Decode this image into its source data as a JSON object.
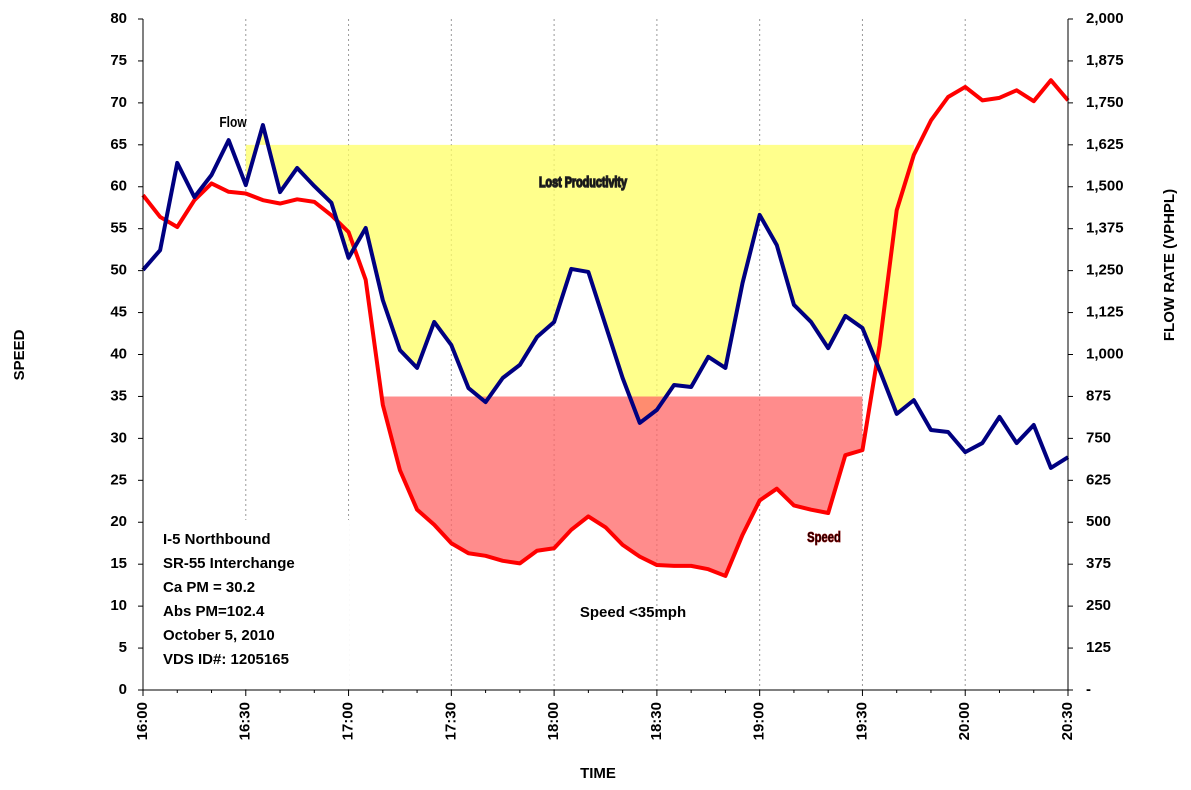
{
  "chart_data": {
    "type": "line",
    "x_label": "TIME",
    "y_label": "SPEED",
    "y2_label": "FLOW RATE (VPHPL)",
    "x": [
      "16:00",
      "16:05",
      "16:10",
      "16:15",
      "16:20",
      "16:25",
      "16:30",
      "16:35",
      "16:40",
      "16:45",
      "16:50",
      "16:55",
      "17:00",
      "17:05",
      "17:10",
      "17:15",
      "17:20",
      "17:25",
      "17:30",
      "17:35",
      "17:40",
      "17:45",
      "17:50",
      "17:55",
      "18:00",
      "18:05",
      "18:10",
      "18:15",
      "18:20",
      "18:25",
      "18:30",
      "18:35",
      "18:40",
      "18:45",
      "18:50",
      "18:55",
      "19:00",
      "19:05",
      "19:10",
      "19:15",
      "19:20",
      "19:25",
      "19:30",
      "19:35",
      "19:40",
      "19:45",
      "19:50",
      "19:55",
      "20:00",
      "20:05",
      "20:10",
      "20:15",
      "20:20",
      "20:25",
      "20:30"
    ],
    "xticks": [
      "16:00",
      "16:30",
      "17:00",
      "17:30",
      "18:00",
      "18:30",
      "19:00",
      "19:30",
      "20:00",
      "20:30"
    ],
    "ylim": [
      0,
      80
    ],
    "yticks": [
      0,
      5,
      10,
      15,
      20,
      25,
      30,
      35,
      40,
      45,
      50,
      55,
      60,
      65,
      70,
      75,
      80
    ],
    "y2lim": [
      0,
      2000
    ],
    "y2ticks": [
      {
        "value": 0,
        "label": "-"
      },
      125,
      250,
      375,
      500,
      625,
      750,
      875,
      {
        "value": 1000,
        "label": "1,000"
      },
      {
        "value": 1125,
        "label": "1,125"
      },
      {
        "value": 1250,
        "label": "1,250"
      },
      {
        "value": 1375,
        "label": "1,375"
      },
      {
        "value": 1500,
        "label": "1,500"
      },
      {
        "value": 1625,
        "label": "1,625"
      },
      {
        "value": 1750,
        "label": "1,750"
      },
      {
        "value": 1875,
        "label": "1,875"
      },
      {
        "value": 2000,
        "label": "2,000"
      }
    ],
    "grid": "x",
    "series": [
      {
        "name": "Speed",
        "color": "#ff0000",
        "values": [
          59.0,
          56.4,
          55.2,
          58.4,
          60.4,
          59.4,
          59.2,
          58.4,
          58.0,
          58.5,
          58.2,
          56.6,
          54.6,
          48.9,
          34.0,
          26.2,
          21.5,
          19.7,
          17.5,
          16.3,
          16.0,
          15.4,
          15.1,
          16.6,
          16.9,
          19.1,
          20.7,
          19.4,
          17.3,
          15.9,
          14.9,
          14.8,
          14.8,
          14.4,
          13.6,
          18.5,
          22.6,
          24.0,
          22.0,
          21.5,
          21.1,
          28.0,
          28.6,
          41.1,
          57.2,
          63.8,
          67.9,
          70.7,
          71.9,
          70.3,
          70.6,
          71.5,
          70.2,
          72.7,
          70.3
        ]
      },
      {
        "name": "Flow",
        "color": "#000080",
        "axis": "y2",
        "values": [
          1252,
          1311,
          1571,
          1469,
          1535,
          1639,
          1505,
          1684,
          1484,
          1556,
          1502,
          1452,
          1288,
          1377,
          1162,
          1013,
          960,
          1097,
          1028,
          900,
          858,
          930,
          969,
          1052,
          1097,
          1255,
          1246,
          1088,
          930,
          796,
          835,
          909,
          903,
          993,
          960,
          1213,
          1416,
          1326,
          1148,
          1097,
          1019,
          1115,
          1079,
          954,
          823,
          864,
          775,
          769,
          709,
          736,
          814,
          736,
          790,
          662,
          694
        ]
      }
    ],
    "regions": [
      {
        "label": "Lost Productivity",
        "axis": "y2",
        "series": 1,
        "level": 1625,
        "from": "16:30",
        "to": "19:45",
        "color": "#ffff66"
      },
      {
        "label": "Speed <35mph",
        "series": 0,
        "level": 35,
        "from": "17:10",
        "to": "19:30",
        "color": "#ff6666"
      }
    ],
    "info_box": [
      "I-5 Northbound",
      "SR-55 Interchange",
      "Ca PM = 30.2",
      "Abs PM=102.4",
      "October 5, 2010",
      "VDS ID#: 1205165"
    ]
  }
}
